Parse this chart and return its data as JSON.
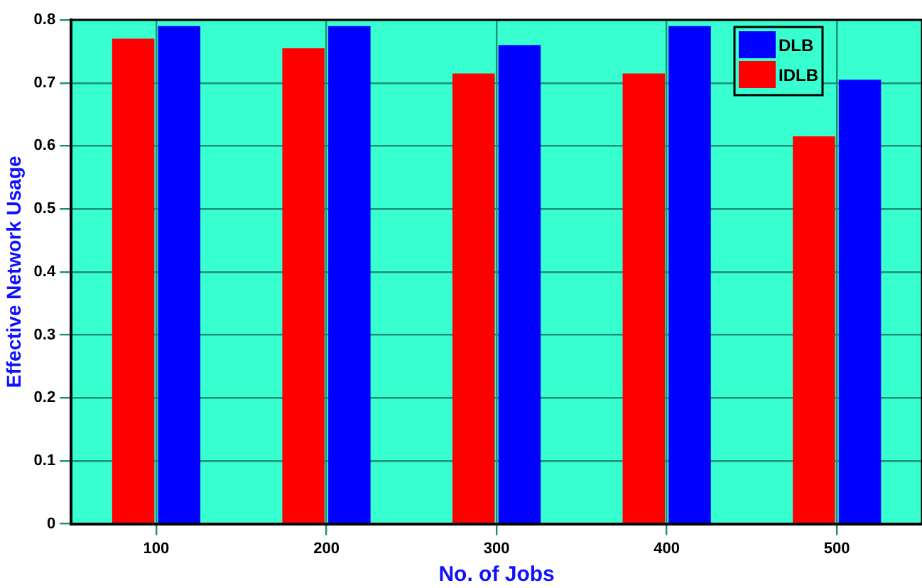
{
  "chart_data": {
    "type": "bar",
    "xlabel": "No. of Jobs",
    "ylabel": "Effective Network Usage",
    "categories": [
      "100",
      "200",
      "300",
      "400",
      "500"
    ],
    "series": [
      {
        "name": "IDLB",
        "color": "#ff0000",
        "values": [
          0.77,
          0.755,
          0.715,
          0.715,
          0.615
        ]
      },
      {
        "name": "DLB",
        "color": "#0000ff",
        "values": [
          0.79,
          0.79,
          0.76,
          0.79,
          0.705
        ]
      }
    ],
    "ylim": [
      0,
      0.8
    ],
    "yticks": [
      0,
      0.1,
      0.2,
      0.3,
      0.4,
      0.5,
      0.6,
      0.7,
      0.8
    ],
    "grid": true,
    "legend": "top right"
  }
}
